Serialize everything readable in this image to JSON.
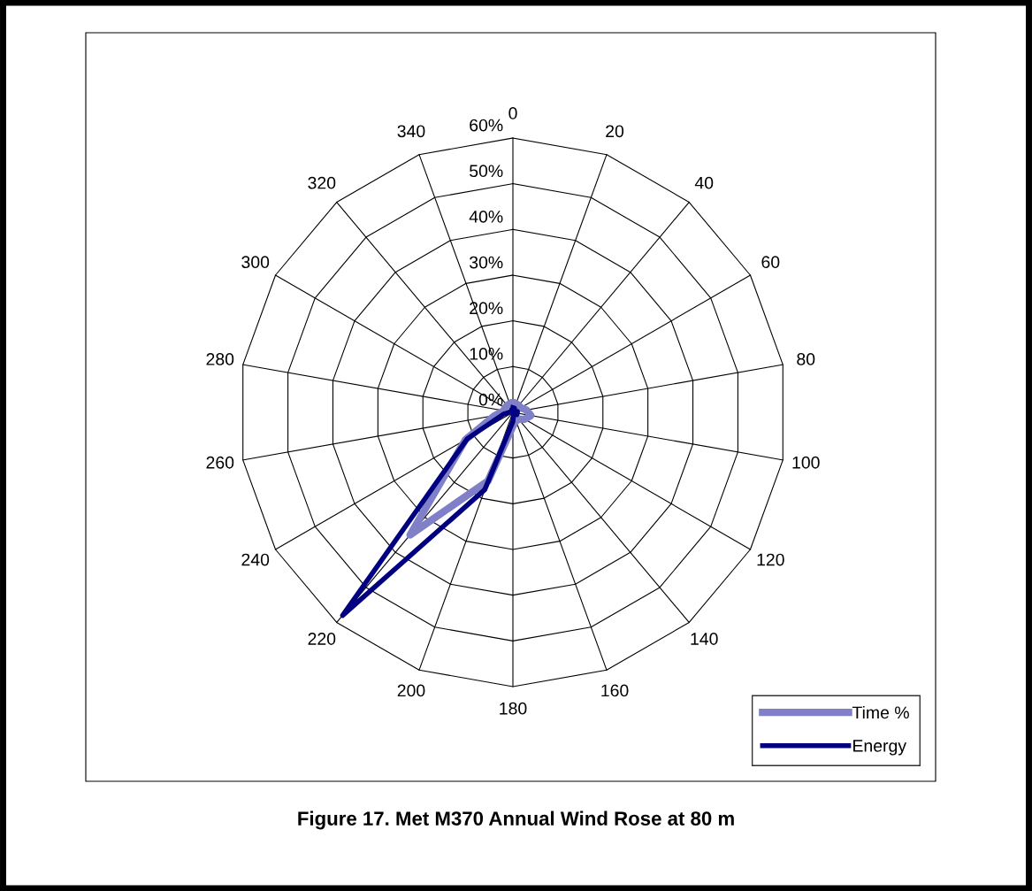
{
  "chart_data": {
    "type": "radar",
    "title": "Figure 17. Met M370 Annual Wind Rose at 80 m",
    "categories": [
      "0",
      "20",
      "40",
      "60",
      "80",
      "100",
      "120",
      "140",
      "160",
      "180",
      "200",
      "220",
      "240",
      "260",
      "280",
      "300",
      "320",
      "340"
    ],
    "series": [
      {
        "name": "Time %",
        "color": "#8080c8",
        "values": [
          2,
          2,
          2,
          2,
          3,
          4,
          3,
          2,
          2,
          3,
          16,
          35,
          12,
          4,
          2,
          2,
          2,
          2
        ]
      },
      {
        "name": "Energy",
        "color": "#000080",
        "values": [
          1,
          1,
          0.5,
          0.5,
          1,
          1,
          1,
          0.5,
          0.5,
          2,
          18,
          58,
          11.5,
          2,
          0.5,
          0.5,
          0.5,
          0.5
        ]
      }
    ],
    "ylim": [
      0,
      60
    ],
    "yticks": [
      {
        "value": 0,
        "label": "0%"
      },
      {
        "value": 10,
        "label": "10%"
      },
      {
        "value": 20,
        "label": "20%"
      },
      {
        "value": 30,
        "label": "30%"
      },
      {
        "value": 40,
        "label": "40%"
      },
      {
        "value": 50,
        "label": "50%"
      },
      {
        "value": 60,
        "label": "60%"
      }
    ],
    "grid": true,
    "legend": "bottom right",
    "marker": "none",
    "line_style": "solid"
  }
}
